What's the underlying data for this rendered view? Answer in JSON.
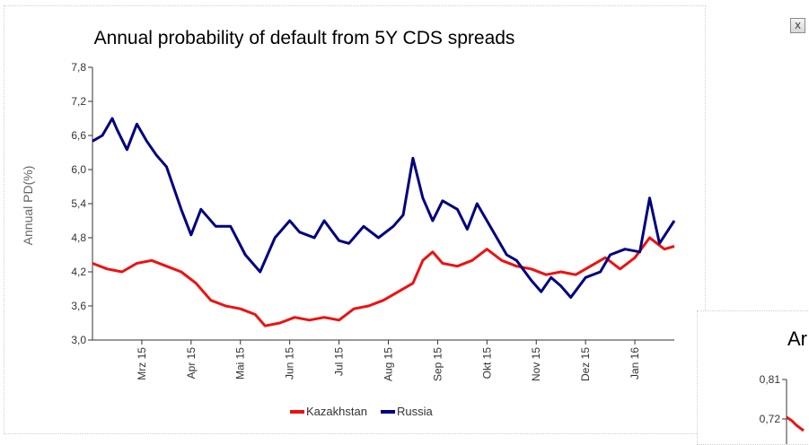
{
  "chart_data": [
    {
      "type": "line",
      "title": "Annual probability of default from 5Y CDS spreads",
      "ylabel": "Annual PD(%)",
      "xlabel": "",
      "ylim": [
        3.0,
        7.8
      ],
      "yticks": [
        "3,0",
        "3,6",
        "4,2",
        "4,8",
        "5,4",
        "6,0",
        "6,6",
        "7,2",
        "7,8"
      ],
      "x_ticks": [
        "Mrz 15",
        "Apr 15",
        "Mai 15",
        "Jun 15",
        "Jul 15",
        "Aug 15",
        "Sep 15",
        "Okt 15",
        "Nov 15",
        "Dez 15",
        "Jan 16"
      ],
      "x_tick_index": [
        0.5,
        1.5,
        2.5,
        3.5,
        4.5,
        5.5,
        6.5,
        7.5,
        8.5,
        9.5,
        10.5
      ],
      "xlim": [
        -0.5,
        11.3
      ],
      "legend_position": "bottom",
      "grid": false,
      "series": [
        {
          "name": "Kazakhstan",
          "color": "#ee1111",
          "x": [
            -0.5,
            -0.2,
            0.1,
            0.4,
            0.7,
            1.0,
            1.3,
            1.6,
            1.9,
            2.2,
            2.5,
            2.8,
            3.0,
            3.3,
            3.6,
            3.9,
            4.2,
            4.5,
            4.8,
            5.1,
            5.4,
            5.7,
            6.0,
            6.2,
            6.4,
            6.6,
            6.9,
            7.2,
            7.5,
            7.8,
            8.1,
            8.4,
            8.7,
            9.0,
            9.3,
            9.6,
            9.9,
            10.2,
            10.5,
            10.8,
            11.1,
            11.3
          ],
          "values": [
            4.35,
            4.25,
            4.2,
            4.35,
            4.4,
            4.3,
            4.2,
            4.0,
            3.7,
            3.6,
            3.55,
            3.45,
            3.25,
            3.3,
            3.4,
            3.35,
            3.4,
            3.35,
            3.55,
            3.6,
            3.7,
            3.85,
            4.0,
            4.4,
            4.55,
            4.35,
            4.3,
            4.4,
            4.6,
            4.4,
            4.3,
            4.25,
            4.15,
            4.2,
            4.15,
            4.3,
            4.45,
            4.25,
            4.45,
            4.8,
            4.6,
            4.65
          ]
        },
        {
          "name": "Russia",
          "color": "#000080",
          "x": [
            -0.5,
            -0.3,
            -0.1,
            0.0,
            0.2,
            0.4,
            0.6,
            0.8,
            1.0,
            1.3,
            1.5,
            1.7,
            2.0,
            2.3,
            2.6,
            2.9,
            3.2,
            3.5,
            3.7,
            4.0,
            4.2,
            4.5,
            4.7,
            5.0,
            5.3,
            5.6,
            5.8,
            6.0,
            6.2,
            6.4,
            6.6,
            6.9,
            7.1,
            7.3,
            7.6,
            7.9,
            8.1,
            8.4,
            8.6,
            8.8,
            9.0,
            9.2,
            9.5,
            9.8,
            10.0,
            10.3,
            10.6,
            10.8,
            11.0,
            11.3
          ],
          "values": [
            6.5,
            6.6,
            6.9,
            6.7,
            6.35,
            6.8,
            6.5,
            6.25,
            6.05,
            5.3,
            4.85,
            5.3,
            5.0,
            5.0,
            4.5,
            4.2,
            4.8,
            5.1,
            4.9,
            4.8,
            5.1,
            4.75,
            4.7,
            5.0,
            4.8,
            5.0,
            5.2,
            6.2,
            5.5,
            5.1,
            5.45,
            5.3,
            4.95,
            5.4,
            4.95,
            4.5,
            4.4,
            4.05,
            3.85,
            4.1,
            3.95,
            3.75,
            4.1,
            4.2,
            4.5,
            4.6,
            4.55,
            5.5,
            4.7,
            5.1
          ]
        }
      ]
    },
    {
      "type": "line",
      "title": "Ar",
      "yticks": [
        "0,81",
        "0,72"
      ],
      "series": []
    }
  ],
  "colors": {
    "kazakhstan": "#ee1111",
    "russia": "#000080",
    "axis": "#333333"
  },
  "close_icon": "x"
}
